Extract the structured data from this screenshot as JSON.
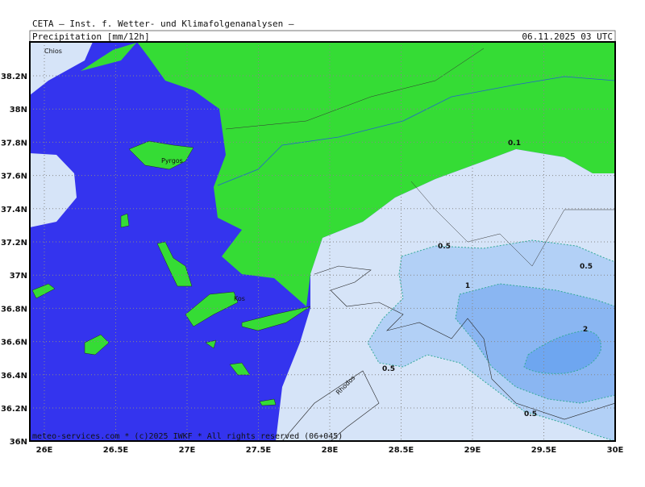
{
  "header": {
    "source": "CETA — Inst. f. Wetter- und Klimafolgenanalysen —",
    "parameter": "Precipitation [mm/12h]",
    "valid_time": "06.11.2025 03 UTC"
  },
  "axes": {
    "y_labels": [
      "38.2N",
      "38N",
      "37.8N",
      "37.6N",
      "37.4N",
      "37.2N",
      "37N",
      "36.8N",
      "36.6N",
      "36.4N",
      "36.2N",
      "36N"
    ],
    "x_labels": [
      "26E",
      "26.5E",
      "27E",
      "27.5E",
      "28E",
      "28.5E",
      "29E",
      "29.5E",
      "30E"
    ]
  },
  "contour_labels": [
    "0.1",
    "0.5",
    "0.5",
    "1",
    "2",
    "0.5",
    "0.5"
  ],
  "places": [
    "Chios",
    "Pyrgos",
    "Kos",
    "Rhodos"
  ],
  "footer": "meteo-services.com * (c)2025 IWKF * All rights reserved (06+045)"
}
